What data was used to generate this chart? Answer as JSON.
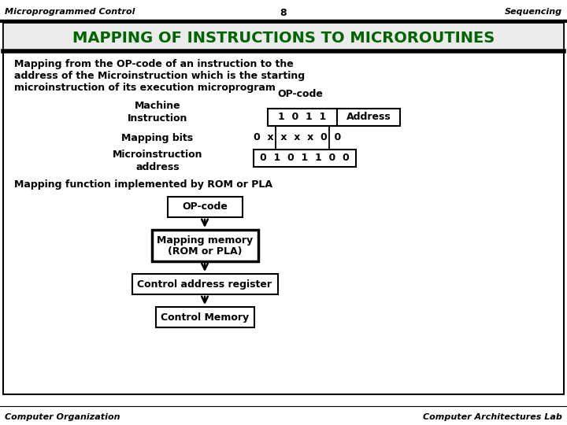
{
  "title_text": "MAPPING OF INSTRUCTIONS TO MICROROUTINES",
  "header_left": "Microprogrammed Control",
  "header_center": "8",
  "header_right": "Sequencing",
  "footer_left": "Computer Organization",
  "footer_right": "Computer Architectures Lab",
  "desc_line1": "Mapping from the OP-code of an instruction to the",
  "desc_line2": "address of the Microinstruction which is the starting",
  "desc_line3": "microinstruction of its execution microprogram",
  "machine_label": "Machine\nInstruction",
  "opcode_label": "OP-code",
  "opcode_bits": "1  0  1  1",
  "address_label": "Address",
  "mapping_bits_label": "Mapping bits",
  "mapping_bits_value": "0  x  x  x  x  0  0",
  "microinstruction_label": "Microinstruction\naddress",
  "microinstruction_value": "0  1  0  1  1  0  0",
  "mapping_function_label": "Mapping function implemented by ROM or PLA",
  "box1_label": "OP-code",
  "box2_line1": "Mapping memory",
  "box2_line2": "(ROM or PLA)",
  "box3_label": "Control address register",
  "box4_label": "Control Memory",
  "bg_color": "#ffffff",
  "title_color": "#006400",
  "text_color": "#000000"
}
